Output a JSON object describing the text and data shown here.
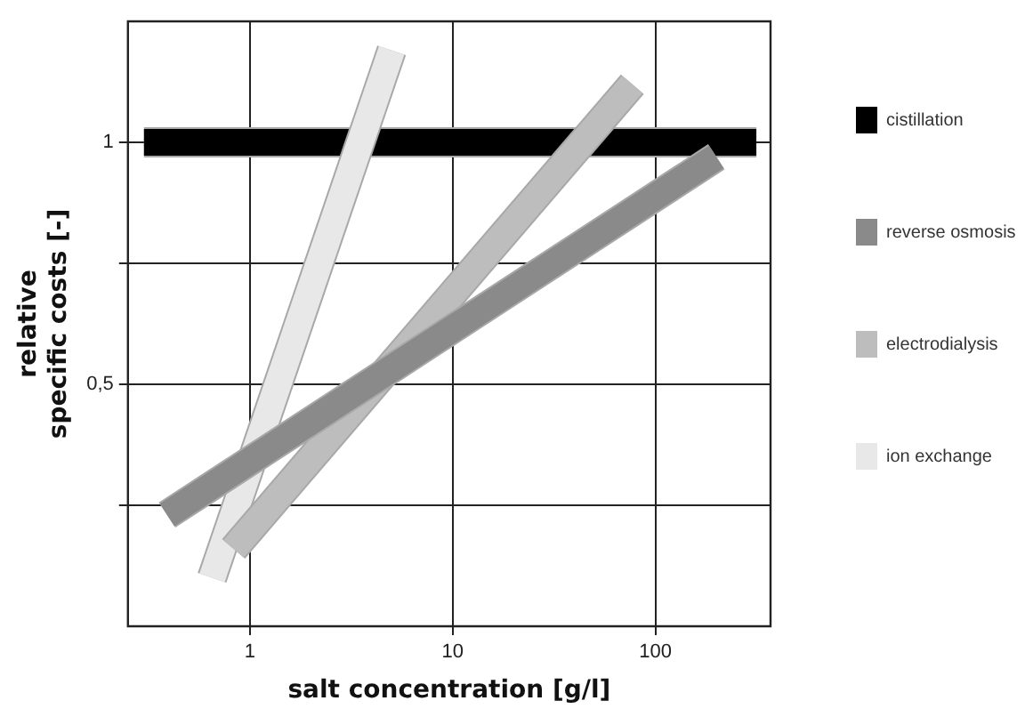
{
  "chart_data": {
    "type": "line",
    "xlabel": "salt concentration [g/l]",
    "ylabel": "relative specific costs [-]",
    "log": "x",
    "xlim": [
      0.25,
      370
    ],
    "xticks": [
      1,
      10,
      100
    ],
    "ylim": [
      0,
      1.25
    ],
    "yticks": [
      {
        "value": 0.25,
        "label": null
      },
      {
        "value": 0.5,
        "label": "0,5"
      },
      {
        "value": 0.75,
        "label": null
      },
      {
        "value": 1,
        "label": "1"
      }
    ],
    "grid": true,
    "legend": "right",
    "marker": "none",
    "line_style": "solid",
    "series": [
      {
        "name": "cistillation",
        "color": "#000000",
        "x": [
          0.3,
          315
        ],
        "values": [
          1,
          1
        ]
      },
      {
        "name": "reverse osmosis",
        "color": "#8a8a8a",
        "x": [
          0.39,
          200
        ],
        "values": [
          0.23,
          0.97
        ]
      },
      {
        "name": "electrodialysis",
        "color": "#bdbdbd",
        "x": [
          0.83,
          77
        ],
        "values": [
          0.16,
          1.12
        ]
      },
      {
        "name": "ion exchange",
        "color": "#e8e8e8",
        "x": [
          0.65,
          5
        ],
        "values": [
          0.1,
          1.19
        ]
      }
    ]
  }
}
